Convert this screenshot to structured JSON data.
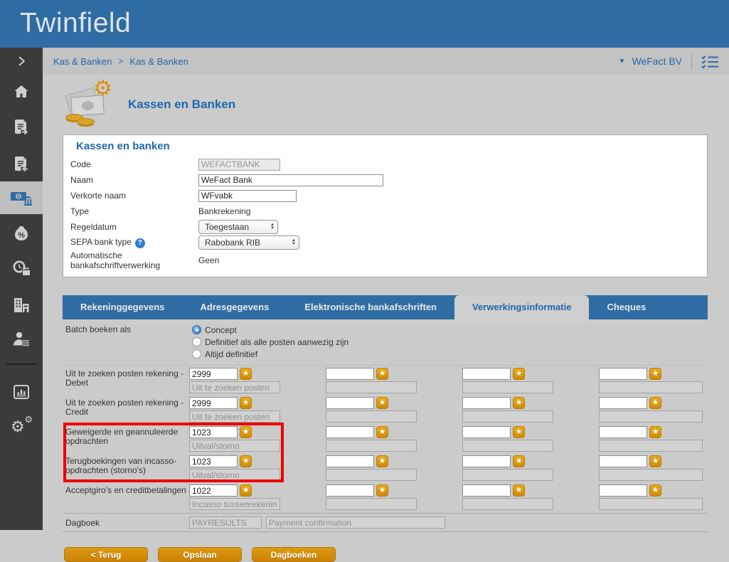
{
  "header": {
    "logo": "Twinfield"
  },
  "breadcrumb": {
    "item1": "Kas & Banken",
    "separator": ">",
    "item2": "Kas & Banken",
    "company": "WeFact BV"
  },
  "page": {
    "title": "Kassen en Banken"
  },
  "panel": {
    "title": "Kassen en banken",
    "code": {
      "label": "Code",
      "value": "WEFACTBANK"
    },
    "naam": {
      "label": "Naam",
      "value": "WeFact Bank"
    },
    "verkorte_naam": {
      "label": "Verkorte naam",
      "value": "WFvabk"
    },
    "type": {
      "label": "Type",
      "value": "Bankrekening"
    },
    "regeldatum": {
      "label": "Regeldatum",
      "value": "Toegestaan"
    },
    "sepa": {
      "label": "SEPA bank type",
      "value": "Rabobank RIB"
    },
    "auto_verwerking": {
      "label": "Automatische bankafschriftverwerking",
      "value": "Geen"
    }
  },
  "tabs": [
    {
      "label": "Rekeninggegevens",
      "active": false
    },
    {
      "label": "Adresgegevens",
      "active": false
    },
    {
      "label": "Elektronische bankafschriften",
      "active": false
    },
    {
      "label": "Verwerkingsinformatie",
      "active": true
    },
    {
      "label": "Cheques",
      "active": false
    }
  ],
  "batch": {
    "label": "Batch boeken als",
    "options": [
      {
        "label": "Concept",
        "selected": true
      },
      {
        "label": "Definitief als alle posten aanwezig zijn",
        "selected": false
      },
      {
        "label": "Altijd definitief",
        "selected": false
      }
    ]
  },
  "account_rows": [
    {
      "label": "Uit te zoeken posten rekening - Debet",
      "value": "2999",
      "description": "Uit te zoeken posten",
      "highlighted": false
    },
    {
      "label": "Uit te zoeken posten rekening - Credit",
      "value": "2999",
      "description": "Uit te zoeken posten",
      "highlighted": false
    },
    {
      "label": "Geweigerde en geannuleerde opdrachten",
      "value": "1023",
      "description": "Uitval/storno",
      "highlighted": true
    },
    {
      "label": "Terugboekingen van incasso-opdrachten (storno's)",
      "value": "1023",
      "description": "Uitval/storno",
      "highlighted": true
    },
    {
      "label": "Acceptgiro's en creditbetalingen",
      "value": "1022",
      "description": "Incasso tussenrekening t",
      "highlighted": false
    }
  ],
  "dagboek": {
    "label": "Dagboek",
    "code": "PAYRESULTS",
    "name": "Payment confirmation"
  },
  "buttons": [
    {
      "label": "< Terug"
    },
    {
      "label": "Opslaan"
    },
    {
      "label": "Dagboeken"
    }
  ],
  "icons": {
    "star": "★",
    "help": "?",
    "caret_down": "▼",
    "arrow_up": "▲",
    "arrow_down": "▼",
    "gear": "⚙"
  },
  "sidebar": {
    "items": [
      "expand",
      "home",
      "invoice-out",
      "invoice-in",
      "cash-and-banks",
      "discounts",
      "time-registration",
      "companies",
      "accounting",
      "reports",
      "settings"
    ],
    "active_item": "cash-and-banks"
  },
  "colors": {
    "header_blue": "#2f6ca4",
    "accent_blue": "#1e68ae",
    "breadcrumb_blue": "#2365a7",
    "button_orange": "#cb8304",
    "star_orange": "#cf8a06",
    "highlight_red": "#ed0000",
    "sidebar_dark": "#3b3b3b"
  }
}
